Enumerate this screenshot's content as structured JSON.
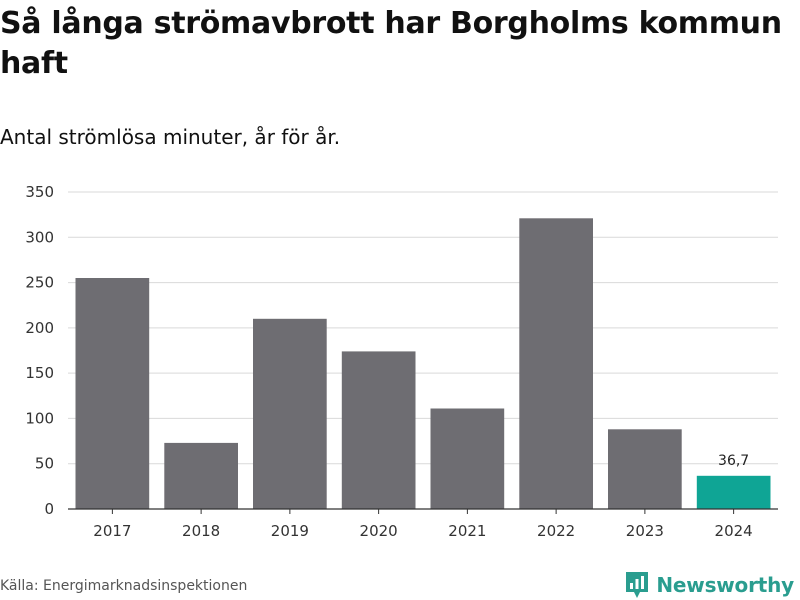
{
  "title": "Så långa strömavbrott har Borgholms kommun haft",
  "subtitle": "Antal strömlösa minuter, år för år.",
  "source": "Källa: Energimarknadsinspektionen",
  "brand": "Newsworthy",
  "colors": {
    "bar": "#6e6d72",
    "highlight": "#0fa595",
    "grid": "#d9d9d9",
    "axis": "#333333",
    "brand": "#2a9d8f"
  },
  "chart_data": {
    "type": "bar",
    "title": "Så långa strömavbrott har Borgholms kommun haft",
    "subtitle": "Antal strömlösa minuter, år för år.",
    "categories": [
      "2017",
      "2018",
      "2019",
      "2020",
      "2021",
      "2022",
      "2023",
      "2024"
    ],
    "values": [
      255,
      73,
      210,
      174,
      111,
      321,
      88,
      36.7
    ],
    "highlight_index": 7,
    "data_labels": [
      null,
      null,
      null,
      null,
      null,
      null,
      null,
      "36,7"
    ],
    "ylim": [
      0,
      350
    ],
    "yticks": [
      0,
      50,
      100,
      150,
      200,
      250,
      300,
      350
    ],
    "ytick_labels": [
      "0",
      "50",
      "100",
      "150",
      "200",
      "250",
      "300",
      "350"
    ],
    "xlabel": "",
    "ylabel": "",
    "grid": true
  }
}
